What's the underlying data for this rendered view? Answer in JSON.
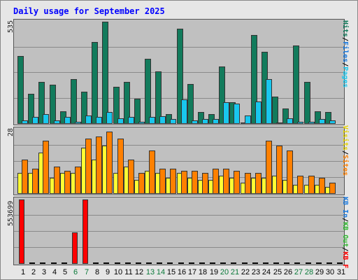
{
  "title": "Daily usage for September 2025",
  "chart_data": {
    "type": "bar",
    "title": "Daily usage for September 2025",
    "categories": [
      "1",
      "2",
      "3",
      "4",
      "5",
      "6",
      "7",
      "8",
      "9",
      "10",
      "11",
      "12",
      "13",
      "14",
      "15",
      "16",
      "17",
      "18",
      "19",
      "20",
      "21",
      "22",
      "23",
      "24",
      "25",
      "26",
      "27",
      "28",
      "29",
      "30",
      "31"
    ],
    "weekend_days": [
      "6",
      "7",
      "13",
      "14",
      "20",
      "21",
      "27",
      "28"
    ],
    "panels": [
      {
        "name": "hits_files",
        "y_max_label": "535",
        "ylim": [
          0,
          535
        ],
        "legend": [
          {
            "text": "Hits",
            "color": "#127b5c"
          },
          {
            "text": "Files",
            "color": "#1b7be0"
          },
          {
            "text": "Pages",
            "color": "#19c7ee"
          }
        ],
        "series": [
          {
            "name": "Hits",
            "color": "#127b5c",
            "values": [
              354,
              158,
              220,
              204,
              66,
              233,
              168,
              430,
              535,
              196,
              220,
              133,
              342,
              274,
              50,
              499,
              209,
              62,
              50,
              300,
              114,
              0,
              465,
              377,
              143,
              79,
              412,
              220,
              66,
              62,
              null
            ]
          },
          {
            "name": "Files",
            "color": "#19c7ee",
            "values": [
              20,
              37,
              53,
              20,
              37,
              12,
              45,
              37,
              62,
              29,
              37,
              12,
              37,
              41,
              25,
              129,
              20,
              25,
              25,
              112,
              108,
              45,
              116,
              233,
              4,
              29,
              12,
              12,
              25,
              20,
              null
            ]
          }
        ]
      },
      {
        "name": "sites_visits",
        "y_max_label": "28",
        "ylim": [
          0,
          28
        ],
        "legend": [
          {
            "text": "Visits",
            "color": "#e6d200"
          },
          {
            "text": "Sites",
            "color": "#ff8000"
          }
        ],
        "series": [
          {
            "name": "Visits",
            "color": "#ffff33",
            "values": [
              9,
              9,
              18,
              7,
              9,
              9,
              20,
              15,
              21,
              9,
              12,
              6,
              10,
              9,
              7,
              9,
              7,
              6,
              6,
              8,
              7,
              5,
              7,
              7,
              8,
              6,
              4,
              4,
              4,
              3,
              null
            ]
          },
          {
            "name": "Sites",
            "color": "#ff8000",
            "values": [
              15,
              11,
              23,
              12,
              10,
              12,
              24,
              25,
              27,
              24,
              15,
              9,
              19,
              11,
              11,
              10,
              10,
              9,
              11,
              11,
              10,
              9,
              9,
              23,
              21,
              19,
              8,
              8,
              7,
              5,
              null
            ]
          }
        ]
      },
      {
        "name": "kbytes",
        "y_max_label": "553699",
        "ylim": [
          0,
          553699
        ],
        "legend": [
          {
            "text": "KB In",
            "color": "#1b7be0"
          },
          {
            "text": "KB Out",
            "color": "#2fb82f"
          },
          {
            "text": "KB F",
            "color": "#ff0000"
          }
        ],
        "series": [
          {
            "name": "KB F",
            "color": "#ff0000",
            "values": [
              553699,
              0,
              0,
              0,
              0,
              273000,
              553699,
              0,
              0,
              0,
              0,
              0,
              0,
              0,
              0,
              0,
              0,
              0,
              0,
              0,
              0,
              0,
              0,
              0,
              0,
              0,
              0,
              0,
              0,
              0,
              0
            ]
          }
        ]
      }
    ]
  }
}
